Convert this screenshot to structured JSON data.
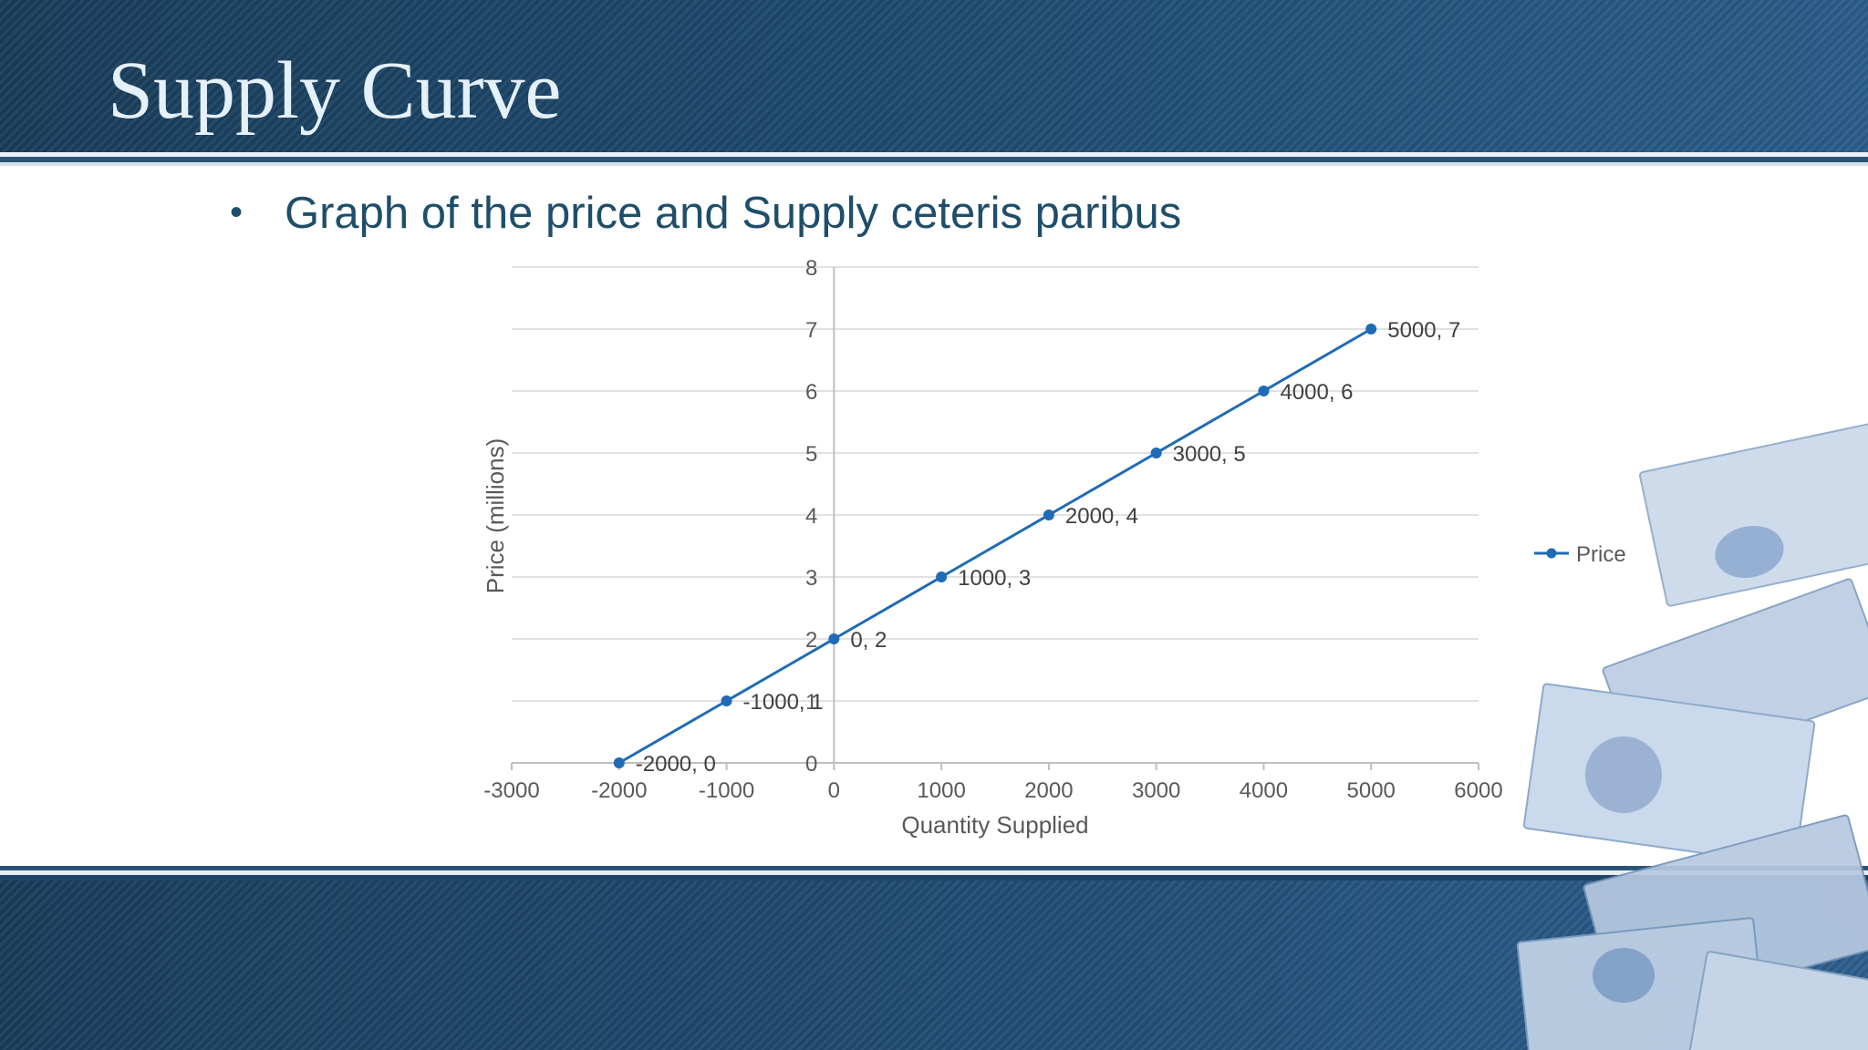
{
  "slide": {
    "title": "Supply Curve",
    "bullet_marker": "•",
    "bullet": "Graph of the price and Supply ceteris paribus"
  },
  "colors": {
    "series": "#1f6bb5",
    "banner": "#1d4a6e",
    "bullet_text": "#1f4e6b",
    "title_text": "#e4f0fa"
  },
  "chart_data": {
    "type": "line",
    "xlabel": "Quantity Supplied",
    "ylabel": "Price (millions)",
    "xlim": [
      -3000,
      6000
    ],
    "ylim": [
      0,
      8
    ],
    "x_ticks": [
      -3000,
      -2000,
      -1000,
      0,
      1000,
      2000,
      3000,
      4000,
      5000,
      6000
    ],
    "y_ticks": [
      0,
      1,
      2,
      3,
      4,
      5,
      6,
      7,
      8
    ],
    "grid": "horizontal",
    "legend": "right",
    "series": [
      {
        "name": "Price",
        "x": [
          -2000,
          -1000,
          0,
          1000,
          2000,
          3000,
          4000,
          5000
        ],
        "y": [
          0,
          1,
          2,
          3,
          4,
          5,
          6,
          7
        ],
        "labels": [
          "-2000, 0",
          "-1000, 1",
          "0, 2",
          "1000, 3",
          "2000, 4",
          "3000, 5",
          "4000, 6",
          "5000, 7"
        ]
      }
    ]
  }
}
